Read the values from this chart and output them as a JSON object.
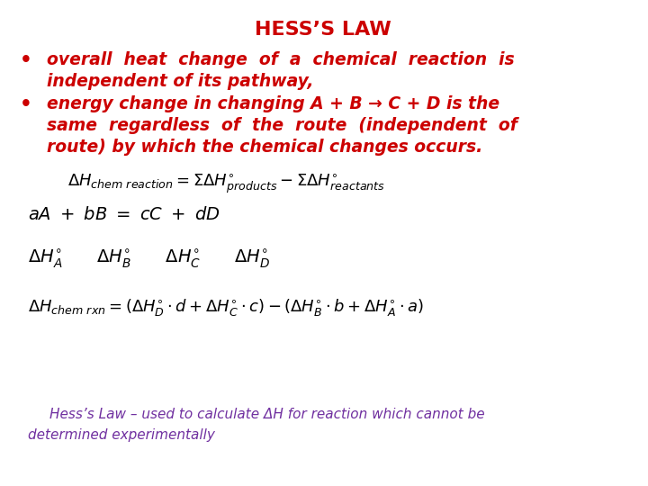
{
  "title": "HESS’S LAW",
  "title_color": "#cc0000",
  "title_fontsize": 16,
  "bullet1_line1": "overall  heat  change  of  a  chemical  reaction  is",
  "bullet1_line2": "independent of its pathway,",
  "bullet2_line1": "energy change in changing A + B → C + D is the",
  "bullet2_line2": "same  regardless  of  the  route  (independent  of",
  "bullet2_line3": "route) by which the chemical changes occurs.",
  "text_color": "#cc0000",
  "footer_line1": "Hess’s Law – used to calculate ΔH for reaction which cannot be",
  "footer_line2": "determined experimentally",
  "footer_color": "#7030a0",
  "bg_color": "#ffffff",
  "eq_color": "#000000",
  "bullet_fontsize": 13.5,
  "eq_fontsize": 13,
  "footer_fontsize": 11
}
